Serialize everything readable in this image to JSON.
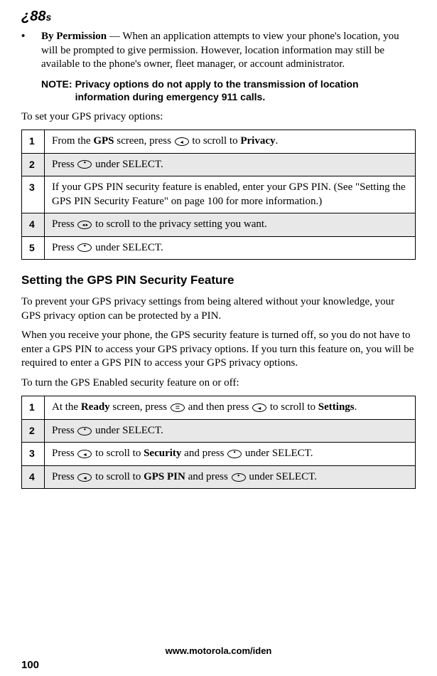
{
  "logo": {
    "main": "¿88",
    "sub": "s"
  },
  "bullet": {
    "title": "By Permission",
    "sep": " — ",
    "text": "When an application attempts to view your phone's location, you will be prompted to give permission. However, location information may still be available to the phone's owner, fleet manager, or account administrator."
  },
  "note": {
    "label": "NOTE:",
    "text": "Privacy options do not apply to the transmission of location information during emergency 911 calls."
  },
  "intro1": "To set your GPS privacy options:",
  "table1": {
    "rows": [
      {
        "num": "1",
        "pre": "From the ",
        "b1": "GPS",
        "mid": " screen, press ",
        "icon": "arrow-l",
        "post": " to scroll to ",
        "b2": "Privacy",
        "end": "."
      },
      {
        "num": "2",
        "pre": "Press ",
        "icon": "dot",
        "post": " under SELECT."
      },
      {
        "num": "3",
        "text": "If your GPS PIN security feature is enabled, enter your GPS PIN. (See \"Setting the GPS PIN Security Feature\" on page 100 for more information.)"
      },
      {
        "num": "4",
        "pre": "Press ",
        "icon": "arrow-lr",
        "post": " to scroll to the privacy setting you want."
      },
      {
        "num": "5",
        "pre": "Press ",
        "icon": "dot",
        "post": " under SELECT."
      }
    ]
  },
  "section_title": "Setting the GPS PIN Security Feature",
  "para1": "To prevent your GPS privacy settings from being altered without your knowledge, your GPS privacy option can be protected by a PIN.",
  "para2": "When you receive your phone, the GPS security feature is turned off, so you do not have to enter a GPS PIN to access your GPS privacy options. If you turn this feature on, you will be required to enter a GPS PIN to access your GPS privacy options.",
  "intro2": "To turn the GPS Enabled security feature on or off:",
  "table2": {
    "rows": [
      {
        "num": "1",
        "pre": "At the ",
        "b1": "Ready",
        "mid": " screen, press ",
        "icon": "menu",
        "mid2": " and then press ",
        "icon2": "arrow-l",
        "post": " to scroll to ",
        "b2": "Settings",
        "end": "."
      },
      {
        "num": "2",
        "pre": "Press ",
        "icon": "dot",
        "post": " under SELECT."
      },
      {
        "num": "3",
        "pre": "Press ",
        "icon": "arrow-l",
        "mid": " to scroll to ",
        "b1": "Security",
        "mid2": " and press ",
        "icon2": "dot",
        "post": " under SELECT."
      },
      {
        "num": "4",
        "pre": "Press ",
        "icon": "arrow-l",
        "mid": " to scroll to ",
        "b1": "GPS PIN",
        "mid2": " and press ",
        "icon2": "dot",
        "post": " under SELECT."
      }
    ]
  },
  "footer_url": "www.motorola.com/iden",
  "page_number": "100"
}
